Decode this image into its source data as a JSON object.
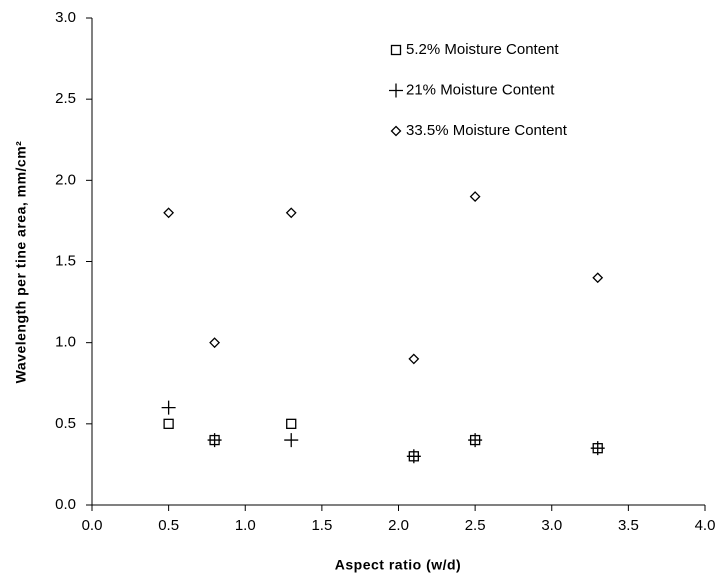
{
  "chart_data": {
    "type": "scatter",
    "xlabel": "Aspect ratio (w/d)",
    "ylabel": "Wavelength per tine area, mm/cm²",
    "xlim": [
      0,
      4
    ],
    "ylim": [
      0,
      3
    ],
    "xticks": [
      {
        "value": 0,
        "label": "0.0"
      },
      {
        "value": 0.5,
        "label": "0.5"
      },
      {
        "value": 1,
        "label": "1.0"
      },
      {
        "value": 1.5,
        "label": "1.5"
      },
      {
        "value": 2,
        "label": "2.0"
      },
      {
        "value": 2.5,
        "label": "2.5"
      },
      {
        "value": 3,
        "label": "3.0"
      },
      {
        "value": 3.5,
        "label": "3.5"
      },
      {
        "value": 4,
        "label": "4.0"
      }
    ],
    "yticks": [
      {
        "value": 0,
        "label": "0.0"
      },
      {
        "value": 0.5,
        "label": "0.5"
      },
      {
        "value": 1,
        "label": "1.0"
      },
      {
        "value": 1.5,
        "label": "1.5"
      },
      {
        "value": 2,
        "label": "2.0"
      },
      {
        "value": 2.5,
        "label": "2.5"
      },
      {
        "value": 3,
        "label": "3.0"
      }
    ],
    "grid": false,
    "legend": "top-right",
    "series": [
      {
        "name": "5.2% Moisture Content",
        "color": "#000000",
        "marker": "square",
        "x": [
          0.5,
          0.8,
          1.3,
          2.1,
          2.5,
          3.3
        ],
        "values": [
          0.5,
          0.4,
          0.5,
          0.3,
          0.4,
          0.35
        ]
      },
      {
        "name": "21% Moisture Content",
        "color": "#000000",
        "marker": "plus",
        "x": [
          0.5,
          0.8,
          1.3,
          2.1,
          2.5,
          3.3
        ],
        "values": [
          0.6,
          0.4,
          0.4,
          0.3,
          0.4,
          0.35
        ]
      },
      {
        "name": "33.5% Moisture Content",
        "color": "#000000",
        "marker": "diamond",
        "x": [
          0.5,
          0.8,
          1.3,
          2.1,
          2.5,
          3.3
        ],
        "values": [
          1.8,
          1.0,
          1.8,
          0.9,
          1.9,
          1.4
        ]
      }
    ]
  }
}
